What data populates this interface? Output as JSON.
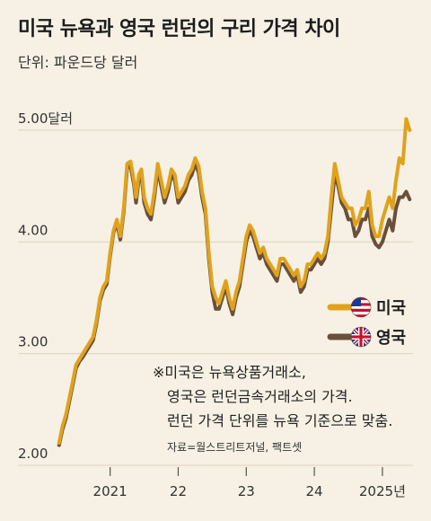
{
  "header": {
    "title": "미국 뉴욕과 영국 런던의 구리 가격 차이",
    "subtitle": "단위: 파운드당 달러"
  },
  "colors": {
    "background": "#f6f1e4",
    "us_line": "#e0a21d",
    "uk_line": "#6b4f3a",
    "grid": "#ddd4bd"
  },
  "note": {
    "lines": [
      "※미국은 뉴욕상품거래소,",
      "영국은 런던금속거래소의 가격.",
      "런던 가격 단위를 뉴욕 기준으로 맞춤."
    ],
    "source": "자료=월스트리트저널, 팩트셋"
  },
  "chart_data": {
    "type": "line",
    "title": "미국 뉴욕과 영국 런던의 구리 가격 차이",
    "ylabel": "단위: 파운드당 달러",
    "ylim": [
      2.0,
      5.2
    ],
    "y_ticks": [
      {
        "value": 5.0,
        "label": "5.00달러"
      },
      {
        "value": 4.0,
        "label": "4.00"
      },
      {
        "value": 3.0,
        "label": "3.00"
      },
      {
        "value": 2.0,
        "label": "2.00"
      }
    ],
    "xlim": [
      2020.2,
      2025.45
    ],
    "x_ticks": [
      {
        "value": 2021.0,
        "label": "2021"
      },
      {
        "value": 2022.0,
        "label": "22"
      },
      {
        "value": 2023.0,
        "label": "23"
      },
      {
        "value": 2024.0,
        "label": "24"
      },
      {
        "value": 2025.0,
        "label": "2025년"
      }
    ],
    "legend_position": "right",
    "series": [
      {
        "name": "미국",
        "icon": "us-flag-icon",
        "x": [
          2020.25,
          2020.3,
          2020.35,
          2020.4,
          2020.45,
          2020.5,
          2020.55,
          2020.6,
          2020.65,
          2020.7,
          2020.75,
          2020.8,
          2020.85,
          2020.9,
          2020.95,
          2021.0,
          2021.05,
          2021.1,
          2021.15,
          2021.2,
          2021.25,
          2021.3,
          2021.35,
          2021.38,
          2021.42,
          2021.46,
          2021.5,
          2021.55,
          2021.6,
          2021.65,
          2021.7,
          2021.75,
          2021.8,
          2021.85,
          2021.9,
          2021.95,
          2022.0,
          2022.05,
          2022.1,
          2022.15,
          2022.2,
          2022.25,
          2022.3,
          2022.35,
          2022.4,
          2022.45,
          2022.5,
          2022.55,
          2022.6,
          2022.65,
          2022.7,
          2022.75,
          2022.8,
          2022.85,
          2022.9,
          2022.95,
          2023.0,
          2023.05,
          2023.1,
          2023.15,
          2023.2,
          2023.25,
          2023.3,
          2023.35,
          2023.4,
          2023.45,
          2023.5,
          2023.55,
          2023.6,
          2023.65,
          2023.7,
          2023.75,
          2023.8,
          2023.85,
          2023.9,
          2023.95,
          2024.0,
          2024.05,
          2024.1,
          2024.15,
          2024.2,
          2024.25,
          2024.3,
          2024.35,
          2024.4,
          2024.45,
          2024.5,
          2024.55,
          2024.6,
          2024.65,
          2024.7,
          2024.75,
          2024.8,
          2024.85,
          2024.9,
          2024.95,
          2025.0,
          2025.05,
          2025.1,
          2025.15,
          2025.2,
          2025.25,
          2025.3,
          2025.35,
          2025.4
        ],
        "values": [
          2.2,
          2.35,
          2.45,
          2.6,
          2.75,
          2.9,
          2.95,
          3.0,
          3.05,
          3.1,
          3.15,
          3.3,
          3.5,
          3.6,
          3.65,
          3.9,
          4.1,
          4.2,
          4.05,
          4.3,
          4.7,
          4.72,
          4.55,
          4.4,
          4.6,
          4.65,
          4.4,
          4.3,
          4.25,
          4.45,
          4.7,
          4.55,
          4.4,
          4.5,
          4.65,
          4.6,
          4.4,
          4.45,
          4.5,
          4.6,
          4.65,
          4.75,
          4.68,
          4.45,
          4.3,
          3.9,
          3.6,
          3.5,
          3.45,
          3.55,
          3.65,
          3.5,
          3.4,
          3.55,
          3.65,
          3.85,
          4.05,
          4.15,
          4.1,
          4.0,
          3.9,
          3.95,
          3.85,
          3.8,
          3.75,
          3.7,
          3.85,
          3.85,
          3.8,
          3.75,
          3.7,
          3.75,
          3.6,
          3.65,
          3.8,
          3.8,
          3.85,
          3.9,
          3.85,
          3.9,
          4.05,
          4.4,
          4.7,
          4.55,
          4.4,
          4.35,
          4.3,
          4.3,
          4.15,
          4.2,
          4.3,
          4.3,
          4.45,
          4.15,
          4.05,
          4.05,
          4.2,
          4.3,
          4.4,
          4.3,
          4.55,
          4.75,
          4.7,
          5.1,
          5.0
        ]
      },
      {
        "name": "영국",
        "icon": "uk-flag-icon",
        "x": [
          2020.25,
          2020.3,
          2020.35,
          2020.4,
          2020.45,
          2020.5,
          2020.55,
          2020.6,
          2020.65,
          2020.7,
          2020.75,
          2020.8,
          2020.85,
          2020.9,
          2020.95,
          2021.0,
          2021.05,
          2021.1,
          2021.15,
          2021.2,
          2021.25,
          2021.3,
          2021.35,
          2021.38,
          2021.42,
          2021.46,
          2021.5,
          2021.55,
          2021.6,
          2021.65,
          2021.7,
          2021.75,
          2021.8,
          2021.85,
          2021.9,
          2021.95,
          2022.0,
          2022.05,
          2022.1,
          2022.15,
          2022.2,
          2022.25,
          2022.3,
          2022.35,
          2022.4,
          2022.45,
          2022.5,
          2022.55,
          2022.6,
          2022.65,
          2022.7,
          2022.75,
          2022.8,
          2022.85,
          2022.9,
          2022.95,
          2023.0,
          2023.05,
          2023.1,
          2023.15,
          2023.2,
          2023.25,
          2023.3,
          2023.35,
          2023.4,
          2023.45,
          2023.5,
          2023.55,
          2023.6,
          2023.65,
          2023.7,
          2023.75,
          2023.8,
          2023.85,
          2023.9,
          2023.95,
          2024.0,
          2024.05,
          2024.1,
          2024.15,
          2024.2,
          2024.25,
          2024.3,
          2024.35,
          2024.4,
          2024.45,
          2024.5,
          2024.55,
          2024.6,
          2024.65,
          2024.7,
          2024.75,
          2024.8,
          2024.85,
          2024.9,
          2024.95,
          2025.0,
          2025.05,
          2025.1,
          2025.15,
          2025.2,
          2025.25,
          2025.3,
          2025.35,
          2025.4
        ],
        "values": [
          2.18,
          2.32,
          2.42,
          2.57,
          2.72,
          2.87,
          2.93,
          2.97,
          3.02,
          3.07,
          3.12,
          3.27,
          3.47,
          3.57,
          3.62,
          3.87,
          4.08,
          4.17,
          4.02,
          4.27,
          4.66,
          4.68,
          4.51,
          4.35,
          4.55,
          4.6,
          4.35,
          4.25,
          4.2,
          4.4,
          4.65,
          4.5,
          4.35,
          4.45,
          4.6,
          4.55,
          4.35,
          4.4,
          4.45,
          4.55,
          4.6,
          4.7,
          4.62,
          4.4,
          4.25,
          3.85,
          3.55,
          3.4,
          3.4,
          3.5,
          3.6,
          3.45,
          3.35,
          3.5,
          3.6,
          3.8,
          4.0,
          4.1,
          4.05,
          3.95,
          3.85,
          3.9,
          3.8,
          3.75,
          3.7,
          3.65,
          3.8,
          3.8,
          3.75,
          3.7,
          3.65,
          3.7,
          3.55,
          3.6,
          3.75,
          3.75,
          3.8,
          3.85,
          3.8,
          3.85,
          4.0,
          4.3,
          4.6,
          4.5,
          4.35,
          4.3,
          4.2,
          4.2,
          4.05,
          4.1,
          4.2,
          4.2,
          4.3,
          4.05,
          3.98,
          3.95,
          4.0,
          4.1,
          4.2,
          4.1,
          4.3,
          4.4,
          4.4,
          4.45,
          4.38
        ]
      }
    ]
  }
}
